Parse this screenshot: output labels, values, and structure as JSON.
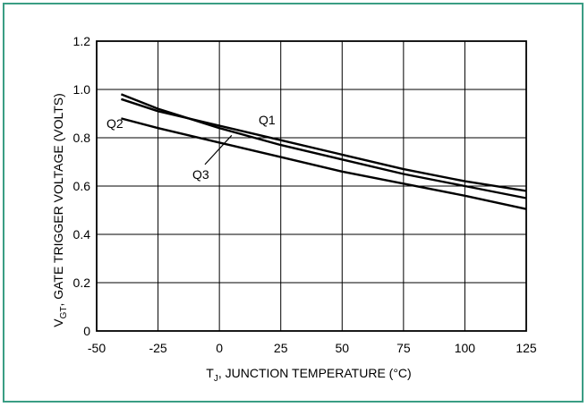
{
  "chart_data": {
    "type": "line",
    "title": "",
    "ylabel_main": "V",
    "ylabel_sub": "GT",
    "ylabel_rest": ", GATE TRIGGER VOLTAGE (VOLTS)",
    "xlabel_main": "T",
    "xlabel_sub": "J",
    "xlabel_rest": ", JUNCTION TEMPERATURE (°C)",
    "xlim": [
      -50,
      125
    ],
    "ylim": [
      0,
      1.2
    ],
    "x_ticks": [
      -50,
      -25,
      0,
      25,
      50,
      75,
      100,
      125
    ],
    "x_tick_labels": [
      "-50",
      "-25",
      "0",
      "25",
      "50",
      "75",
      "100",
      "125"
    ],
    "y_ticks": [
      0,
      0.2,
      0.4,
      0.6,
      0.8,
      1.0,
      1.2
    ],
    "y_tick_labels": [
      "0",
      "0.2",
      "0.4",
      "0.6",
      "0.8",
      "1.0",
      "1.2"
    ],
    "grid": true,
    "line_color": "#000000",
    "frame_color": "#3a9d84",
    "series": [
      {
        "name": "Q1",
        "x": [
          -40,
          -25,
          0,
          25,
          50,
          75,
          100,
          125
        ],
        "y": [
          0.96,
          0.91,
          0.85,
          0.79,
          0.73,
          0.67,
          0.62,
          0.58
        ]
      },
      {
        "name": "Q2",
        "x": [
          -40,
          -25,
          0,
          25,
          50,
          75,
          100,
          125
        ],
        "y": [
          0.98,
          0.92,
          0.84,
          0.77,
          0.71,
          0.65,
          0.6,
          0.55
        ]
      },
      {
        "name": "Q3",
        "x": [
          -40,
          -25,
          0,
          25,
          50,
          75,
          100,
          125
        ],
        "y": [
          0.88,
          0.84,
          0.78,
          0.72,
          0.66,
          0.61,
          0.56,
          0.505
        ]
      }
    ],
    "annotations": [
      {
        "label": "Q1",
        "x": 16,
        "y": 0.855,
        "leader": false
      },
      {
        "label": "Q2",
        "x": -46,
        "y": 0.84,
        "leader": false
      },
      {
        "label": "Q3",
        "x": -11,
        "y": 0.63,
        "leader": true,
        "tip_x": 5,
        "tip_y": 0.81
      }
    ]
  }
}
